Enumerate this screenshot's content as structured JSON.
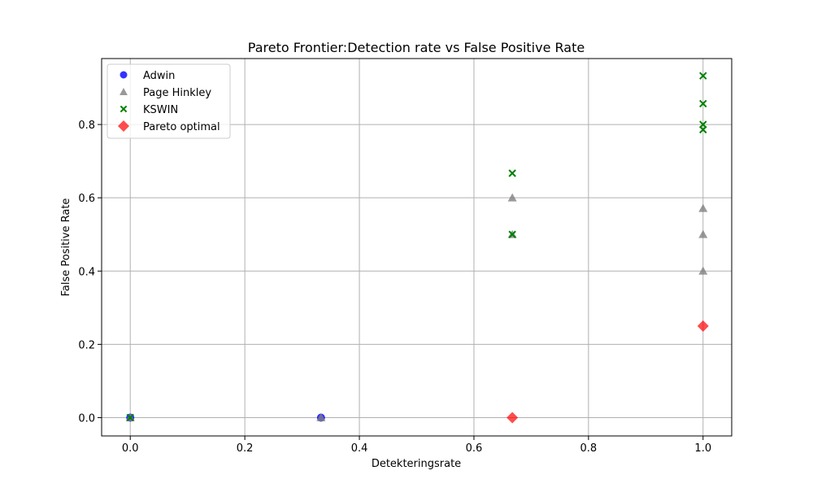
{
  "chart_data": {
    "type": "scatter",
    "title": "Pareto Frontier:Detection rate vs False Positive Rate",
    "xlabel": "Detekteringsrate",
    "ylabel": "False Positive Rate",
    "xlim": [
      -0.05,
      1.05
    ],
    "ylim": [
      -0.05,
      0.98
    ],
    "xticks": [
      0.0,
      0.2,
      0.4,
      0.6,
      0.8,
      1.0
    ],
    "xtick_labels": [
      "0.0",
      "0.2",
      "0.4",
      "0.6",
      "0.8",
      "1.0"
    ],
    "yticks": [
      0.0,
      0.2,
      0.4,
      0.6,
      0.8
    ],
    "ytick_labels": [
      "0.0",
      "0.2",
      "0.4",
      "0.6",
      "0.8"
    ],
    "grid": true,
    "legend_position": "upper-left",
    "series": [
      {
        "name": "Adwin",
        "marker": "circle",
        "color": "#0000ff",
        "points": [
          [
            0.0,
            0.0
          ],
          [
            0.333,
            0.0
          ]
        ]
      },
      {
        "name": "Page Hinkley",
        "marker": "triangle",
        "color": "#808080",
        "points": [
          [
            0.0,
            0.0
          ],
          [
            0.333,
            0.0
          ],
          [
            0.667,
            0.6
          ],
          [
            0.667,
            0.5
          ],
          [
            1.0,
            0.571
          ],
          [
            1.0,
            0.5
          ],
          [
            1.0,
            0.4
          ]
        ]
      },
      {
        "name": "KSWIN",
        "marker": "x",
        "color": "#008000",
        "points": [
          [
            0.0,
            0.0
          ],
          [
            0.667,
            0.667
          ],
          [
            0.667,
            0.5
          ],
          [
            1.0,
            0.933
          ],
          [
            1.0,
            0.857
          ],
          [
            1.0,
            0.8
          ],
          [
            1.0,
            0.786
          ]
        ]
      },
      {
        "name": "Pareto optimal",
        "marker": "diamond",
        "color": "#ff0000",
        "points": [
          [
            0.667,
            0.0
          ],
          [
            1.0,
            0.25
          ]
        ]
      }
    ]
  }
}
